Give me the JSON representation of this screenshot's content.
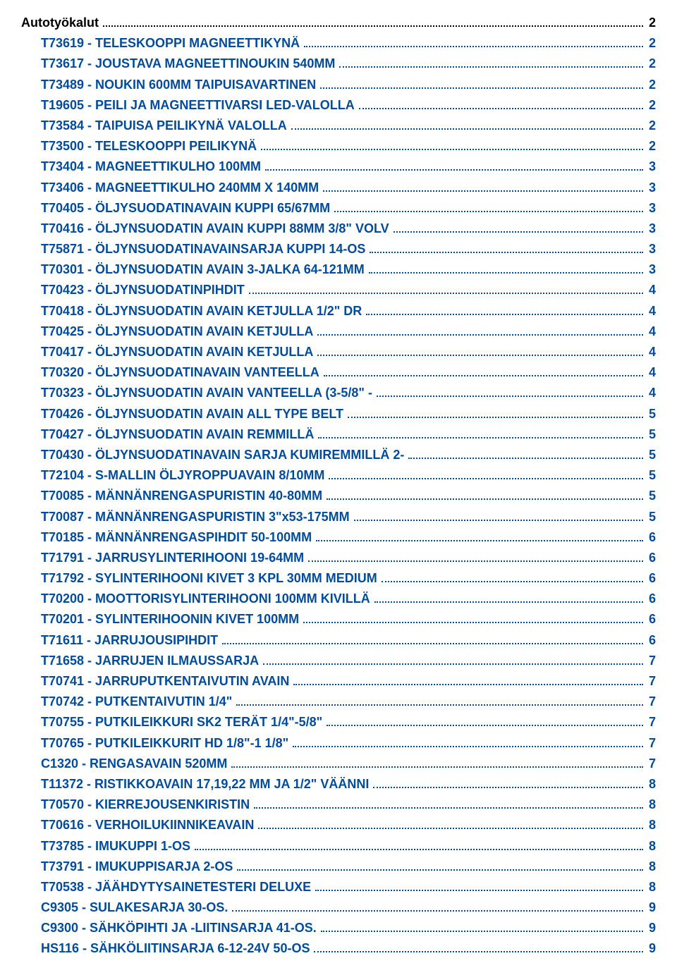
{
  "colors": {
    "heading": "#000000",
    "link": "#004b9b",
    "background": "#ffffff"
  },
  "typography": {
    "font_family": "Arial",
    "font_size_pt": 14,
    "font_weight": "bold",
    "line_height": 1.4
  },
  "heading": {
    "label": "Autotyökalut",
    "page": "2"
  },
  "items": [
    {
      "label": "T73619 - TELESKOOPPI MAGNEETTIKYNÄ",
      "page": "2"
    },
    {
      "label": "T73617 - JOUSTAVA MAGNEETTINOUKIN 540MM",
      "page": "2"
    },
    {
      "label": "T73489 - NOUKIN 600MM TAIPUISAVARTINEN",
      "page": "2"
    },
    {
      "label": "T19605 - PEILI JA MAGNEETTIVARSI LED-VALOLLA",
      "page": "2"
    },
    {
      "label": "T73584 - TAIPUISA PEILIKYNÄ VALOLLA",
      "page": "2"
    },
    {
      "label": "T73500 - TELESKOOPPI PEILIKYNÄ",
      "page": "2"
    },
    {
      "label": "T73404 - MAGNEETTIKULHO 100MM",
      "page": "3"
    },
    {
      "label": "T73406 - MAGNEETTIKULHO 240MM X 140MM",
      "page": "3"
    },
    {
      "label": "T70405 - ÖLJYSUODATINAVAIN KUPPI 65/67MM",
      "page": "3"
    },
    {
      "label": "T70416 - ÖLJYNSUODATIN AVAIN KUPPI 88MM 3/8\" VOLV",
      "page": "3"
    },
    {
      "label": "T75871 - ÖLJYNSUODATINAVAINSARJA KUPPI 14-OS",
      "page": "3"
    },
    {
      "label": "T70301 - ÖLJYNSUODATIN AVAIN 3-JALKA 64-121MM",
      "page": "3"
    },
    {
      "label": "T70423 - ÖLJYNSUODATINPIHDIT",
      "page": "4"
    },
    {
      "label": "T70418 - ÖLJYNSUODATIN AVAIN KETJULLA 1/2\" DR",
      "page": "4"
    },
    {
      "label": "T70425 - ÖLJYNSUODATIN AVAIN KETJULLA",
      "page": "4"
    },
    {
      "label": "T70417 - ÖLJYNSUODATIN AVAIN KETJULLA",
      "page": "4"
    },
    {
      "label": "T70320 - ÖLJYNSUODATINAVAIN VANTEELLA",
      "page": "4"
    },
    {
      "label": "T70323 - ÖLJYNSUODATIN AVAIN VANTEELLA (3-5/8\" -",
      "page": "4"
    },
    {
      "label": "T70426 - ÖLJYNSUODATIN AVAIN ALL TYPE BELT",
      "page": "5"
    },
    {
      "label": "T70427 - ÖLJYNSUODATIN AVAIN REMMILLÄ",
      "page": "5"
    },
    {
      "label": "T70430 - ÖLJYNSUODATINAVAIN SARJA KUMIREMMILLÄ 2-",
      "page": "5"
    },
    {
      "label": "T72104 - S-MALLIN ÖLJYROPPUAVAIN 8/10MM",
      "page": "5"
    },
    {
      "label": "T70085 - MÄNNÄNRENGASPURISTIN 40-80MM",
      "page": "5"
    },
    {
      "label": "T70087 - MÄNNÄNRENGASPURISTIN 3\"x53-175MM",
      "page": "5"
    },
    {
      "label": "T70185 - MÄNNÄNRENGASPIHDIT 50-100MM",
      "page": "6"
    },
    {
      "label": "T71791 - JARRUSYLINTERIHOONI 19-64MM",
      "page": "6"
    },
    {
      "label": "T71792 - SYLINTERIHOONI KIVET 3 KPL 30MM MEDIUM",
      "page": "6"
    },
    {
      "label": "T70200 - MOOTTORISYLINTERIHOONI 100MM KIVILLÄ",
      "page": "6"
    },
    {
      "label": "T70201 - SYLINTERIHOONIN KIVET 100MM",
      "page": "6"
    },
    {
      "label": "T71611 - JARRUJOUSIPIHDIT",
      "page": "6"
    },
    {
      "label": "T71658 - JARRUJEN ILMAUSSARJA",
      "page": "7"
    },
    {
      "label": "T70741 - JARRUPUTKENTAIVUTIN AVAIN",
      "page": "7"
    },
    {
      "label": "T70742 - PUTKENTAIVUTIN 1/4\"",
      "page": "7"
    },
    {
      "label": "T70755 - PUTKILEIKKURI SK2 TERÄT 1/4\"-5/8\"",
      "page": "7"
    },
    {
      "label": "T70765 - PUTKILEIKKURIT HD 1/8\"-1 1/8\"",
      "page": "7"
    },
    {
      "label": "C1320 - RENGASAVAIN 520MM",
      "page": "7"
    },
    {
      "label": "T11372 - RISTIKKOAVAIN 17,19,22 MM JA 1/2\" VÄÄNNI",
      "page": "8"
    },
    {
      "label": "T70570 - KIERREJOUSENKIRISTIN",
      "page": "8"
    },
    {
      "label": "T70616 - VERHOILUKIINNIKEAVAIN",
      "page": "8"
    },
    {
      "label": "T73785 - IMUKUPPI 1-OS",
      "page": "8"
    },
    {
      "label": "T73791 - IMUKUPPISARJA 2-OS",
      "page": "8"
    },
    {
      "label": "T70538 - JÄÄHDYTYSAINETESTERI DELUXE",
      "page": "8"
    },
    {
      "label": "C9305 - SULAKESARJA 30-OS.",
      "page": "9"
    },
    {
      "label": "C9300 - SÄHKÖPIHTI JA -LIITINSARJA 41-OS.",
      "page": "9"
    },
    {
      "label": "HS116 - SÄHKÖLIITINSARJA 6-12-24V 50-OS",
      "page": "9"
    }
  ]
}
